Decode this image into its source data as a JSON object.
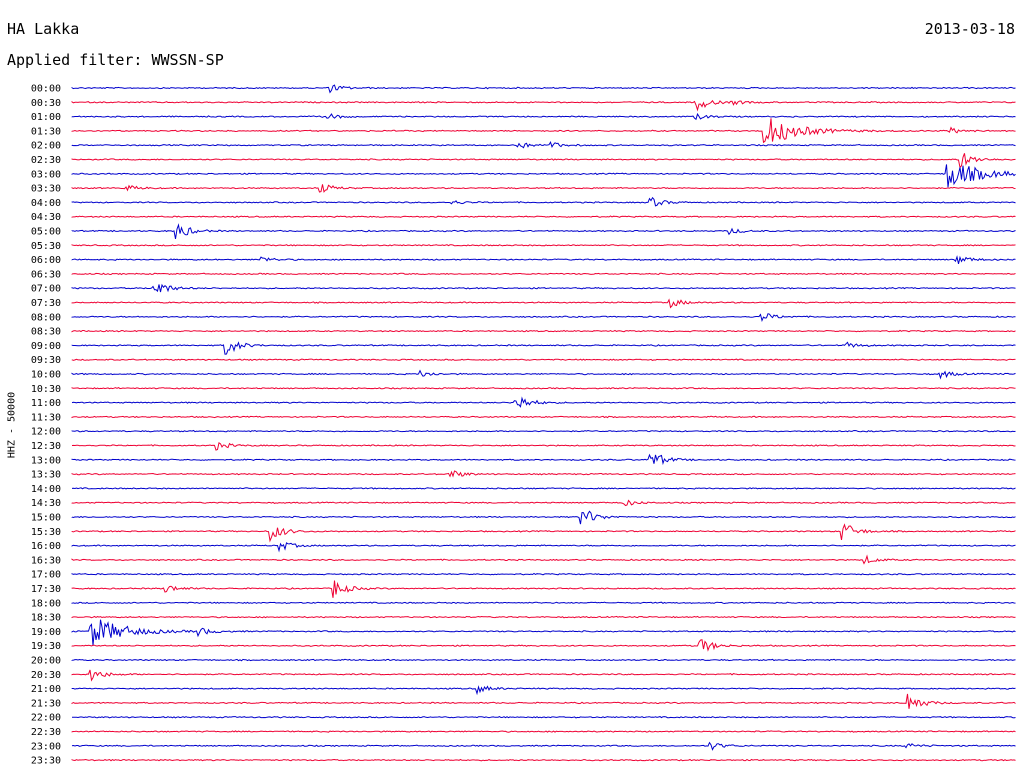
{
  "header": {
    "station": "HA Lakka",
    "date": "2013-03-18",
    "filter": "Applied filter: WWSSN-SP"
  },
  "chart_data": {
    "type": "line",
    "title": "HA Lakka",
    "subtitle": "Applied filter: WWSSN-SP",
    "ylabel": "HHZ - 50000",
    "xlabel": "",
    "date": "2013-03-18",
    "trace_colors": [
      "#0000cc",
      "#ee0033"
    ],
    "row_labels": [
      "00:00",
      "00:30",
      "01:00",
      "01:30",
      "02:00",
      "02:30",
      "03:00",
      "03:30",
      "04:00",
      "04:30",
      "05:00",
      "05:30",
      "06:00",
      "06:30",
      "07:00",
      "07:30",
      "08:00",
      "08:30",
      "09:00",
      "09:30",
      "10:00",
      "10:30",
      "11:00",
      "11:30",
      "12:00",
      "12:30",
      "13:00",
      "13:30",
      "14:00",
      "14:30",
      "15:00",
      "15:30",
      "16:00",
      "16:30",
      "17:00",
      "17:30",
      "18:00",
      "18:30",
      "19:00",
      "19:30",
      "20:00",
      "20:30",
      "21:00",
      "21:30",
      "22:00",
      "22:30",
      "23:00",
      "23:30"
    ],
    "events": [
      {
        "row": "00:00",
        "minute": 8.2,
        "amplitude": 4
      },
      {
        "row": "00:30",
        "minute": 19.8,
        "amplitude": 10
      },
      {
        "row": "00:30",
        "minute": 21.0,
        "amplitude": 2
      },
      {
        "row": "01:00",
        "minute": 8.0,
        "amplitude": 4
      },
      {
        "row": "01:00",
        "minute": 19.8,
        "amplitude": 3
      },
      {
        "row": "01:30",
        "minute": 22.0,
        "amplitude": 16
      },
      {
        "row": "01:30",
        "minute": 27.9,
        "amplitude": 3
      },
      {
        "row": "02:00",
        "minute": 14.2,
        "amplitude": 3
      },
      {
        "row": "02:00",
        "minute": 15.2,
        "amplitude": 3
      },
      {
        "row": "02:30",
        "minute": 28.2,
        "amplitude": 10
      },
      {
        "row": "03:00",
        "minute": 27.8,
        "amplitude": 16
      },
      {
        "row": "03:30",
        "minute": 1.7,
        "amplitude": 3
      },
      {
        "row": "03:30",
        "minute": 7.9,
        "amplitude": 5
      },
      {
        "row": "04:00",
        "minute": 12.1,
        "amplitude": 2
      },
      {
        "row": "04:00",
        "minute": 18.4,
        "amplitude": 5
      },
      {
        "row": "05:00",
        "minute": 3.3,
        "amplitude": 10
      },
      {
        "row": "05:00",
        "minute": 20.9,
        "amplitude": 3
      },
      {
        "row": "06:00",
        "minute": 6.0,
        "amplitude": 3
      },
      {
        "row": "06:00",
        "minute": 28.1,
        "amplitude": 5
      },
      {
        "row": "07:00",
        "minute": 2.6,
        "amplitude": 10
      },
      {
        "row": "07:30",
        "minute": 19.0,
        "amplitude": 5
      },
      {
        "row": "08:00",
        "minute": 21.9,
        "amplitude": 5
      },
      {
        "row": "09:00",
        "minute": 4.9,
        "amplitude": 10
      },
      {
        "row": "09:00",
        "minute": 24.6,
        "amplitude": 3
      },
      {
        "row": "10:00",
        "minute": 11.1,
        "amplitude": 3
      },
      {
        "row": "10:00",
        "minute": 27.6,
        "amplitude": 4
      },
      {
        "row": "11:00",
        "minute": 14.1,
        "amplitude": 10
      },
      {
        "row": "12:30",
        "minute": 4.6,
        "amplitude": 4
      },
      {
        "row": "13:00",
        "minute": 18.4,
        "amplitude": 10
      },
      {
        "row": "13:30",
        "minute": 12.0,
        "amplitude": 5
      },
      {
        "row": "14:30",
        "minute": 17.5,
        "amplitude": 4
      },
      {
        "row": "15:00",
        "minute": 16.2,
        "amplitude": 11
      },
      {
        "row": "15:30",
        "minute": 6.3,
        "amplitude": 10
      },
      {
        "row": "15:30",
        "minute": 24.5,
        "amplitude": 10
      },
      {
        "row": "16:00",
        "minute": 6.6,
        "amplitude": 5
      },
      {
        "row": "16:30",
        "minute": 25.2,
        "amplitude": 4
      },
      {
        "row": "17:30",
        "minute": 3.0,
        "amplitude": 4
      },
      {
        "row": "17:30",
        "minute": 8.3,
        "amplitude": 10
      },
      {
        "row": "19:00",
        "minute": 0.6,
        "amplitude": 16
      },
      {
        "row": "19:00",
        "minute": 4.0,
        "amplitude": 4
      },
      {
        "row": "19:30",
        "minute": 19.9,
        "amplitude": 10
      },
      {
        "row": "20:30",
        "minute": 0.6,
        "amplitude": 7
      },
      {
        "row": "21:00",
        "minute": 12.9,
        "amplitude": 4
      },
      {
        "row": "21:30",
        "minute": 26.6,
        "amplitude": 10
      },
      {
        "row": "23:00",
        "minute": 20.3,
        "amplitude": 4
      },
      {
        "row": "23:00",
        "minute": 26.5,
        "amplitude": 3
      }
    ]
  }
}
